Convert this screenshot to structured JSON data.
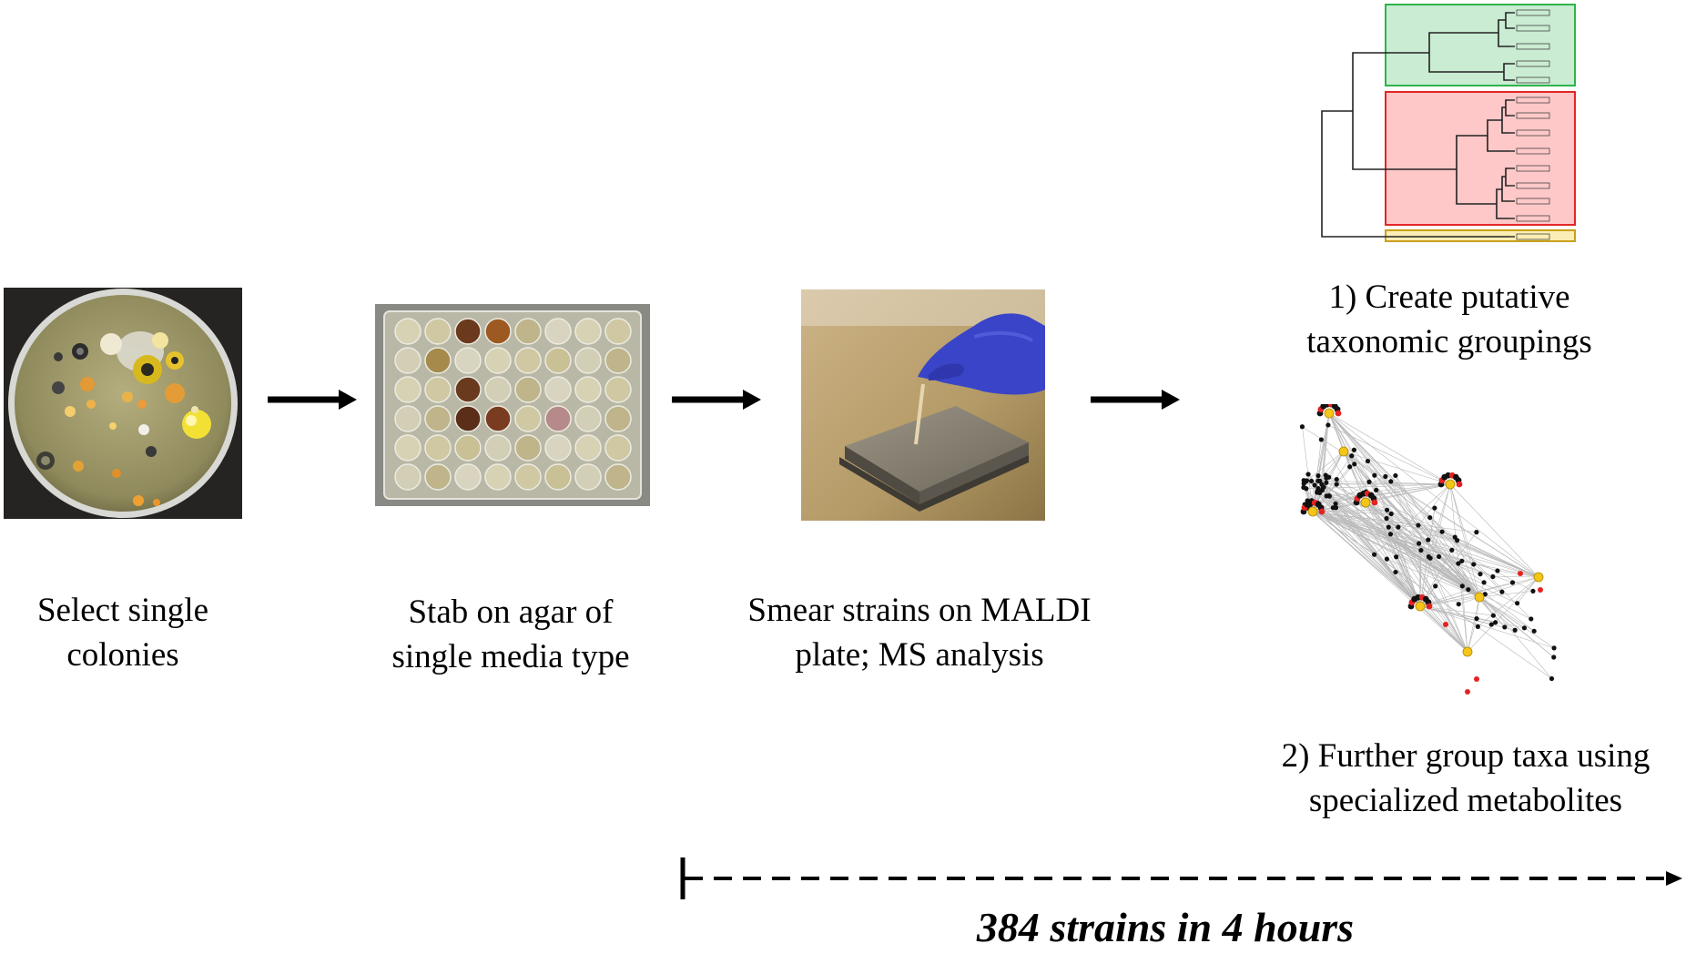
{
  "steps": [
    {
      "line1": "Select single",
      "line2": "colonies"
    },
    {
      "line1": "Stab on agar of",
      "line2": "single media type"
    },
    {
      "line1": "Smear strains on MALDI",
      "line2": "plate; MS analysis"
    }
  ],
  "outputs": {
    "grouping": {
      "line1": "1) Create putative",
      "line2": "taxonomic groupings"
    },
    "metabolites": {
      "line1": "2) Further group taxa using",
      "line2": "specialized metabolites"
    }
  },
  "timeline": {
    "label": "384 strains in 4 hours"
  },
  "images": {
    "step1": "petri-dish-colonies-photo",
    "step2": "well-plate-photo",
    "step3": "maldi-plate-photo"
  },
  "colors": {
    "cluster_green": "#c9ecd2",
    "cluster_green_border": "#2fb34a",
    "cluster_red": "#ffc8c8",
    "cluster_red_border": "#e32626",
    "cluster_yellow": "#fbeeb4",
    "cluster_yellow_border": "#c8a01c",
    "glove": "#3a44c8",
    "node_black": "#111111",
    "node_yellow": "#f5c518",
    "node_red": "#e52222"
  }
}
